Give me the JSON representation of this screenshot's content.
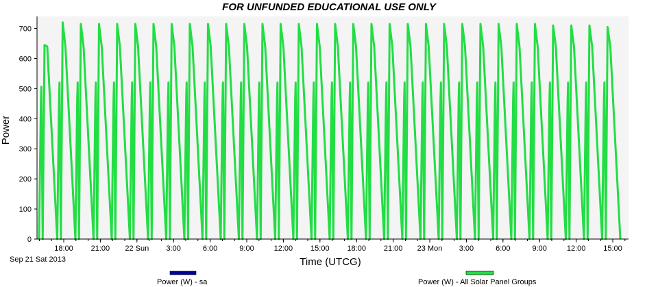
{
  "chart_data": {
    "type": "line",
    "title": "FOR UNFUNDED EDUCATIONAL USE ONLY",
    "xlabel": "Time (UTCG)",
    "ylabel": "Power",
    "ylim": [
      0,
      740
    ],
    "yticks": [
      0,
      100,
      200,
      300,
      400,
      500,
      600,
      700
    ],
    "x_start_label": "Sep 21 Sat 2013",
    "xticks": [
      "18:00",
      "21:00",
      "22 Sun",
      "3:00",
      "6:00",
      "9:00",
      "12:00",
      "15:00",
      "18:00",
      "21:00",
      "23 Mon",
      "3:00",
      "6:00",
      "9:00",
      "12:00",
      "15:00"
    ],
    "grid": false,
    "legend_placement": "bottom",
    "series": [
      {
        "name": "Power (W) - sa",
        "color": "#000099",
        "values": []
      },
      {
        "name": "Power (W) - All Solar Panel Groups",
        "color": "#22dd44",
        "orbit_minutes": 96,
        "peaks": [
          645,
          720,
          715,
          715,
          715,
          715,
          715,
          715,
          715,
          715,
          715,
          715,
          715,
          715,
          715,
          715,
          715,
          715,
          715,
          715,
          715,
          715,
          715,
          715,
          715,
          715,
          715,
          715,
          710,
          710,
          710,
          705
        ],
        "secondary_peaks": [
          540,
          555,
          555,
          555,
          555,
          555,
          555,
          555,
          555,
          555,
          555,
          555,
          555,
          555,
          555,
          555,
          555,
          555,
          555,
          555,
          555,
          555,
          555,
          555,
          555,
          555,
          555,
          555,
          555,
          555,
          555,
          555
        ],
        "minimum": 0
      }
    ]
  }
}
